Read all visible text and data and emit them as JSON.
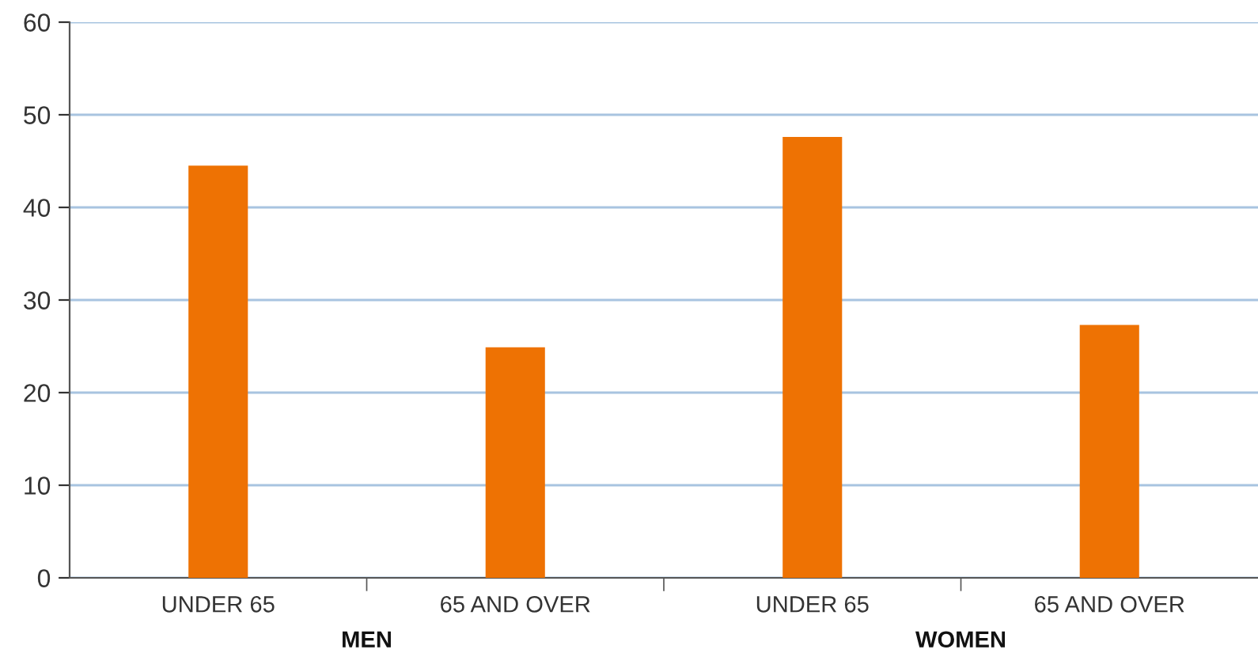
{
  "chart_data": {
    "type": "bar",
    "categories": [
      "UNDER 65",
      "65 AND OVER",
      "UNDER 65",
      "65 AND OVER"
    ],
    "values": [
      44.5,
      24.9,
      47.6,
      27.3
    ],
    "color": "#ee7203",
    "ylim": [
      0,
      60
    ],
    "yticks": [
      0,
      10,
      20,
      30,
      40,
      50,
      60
    ],
    "grid": "y",
    "annotations": [
      "MEN",
      "WOMEN"
    ]
  }
}
